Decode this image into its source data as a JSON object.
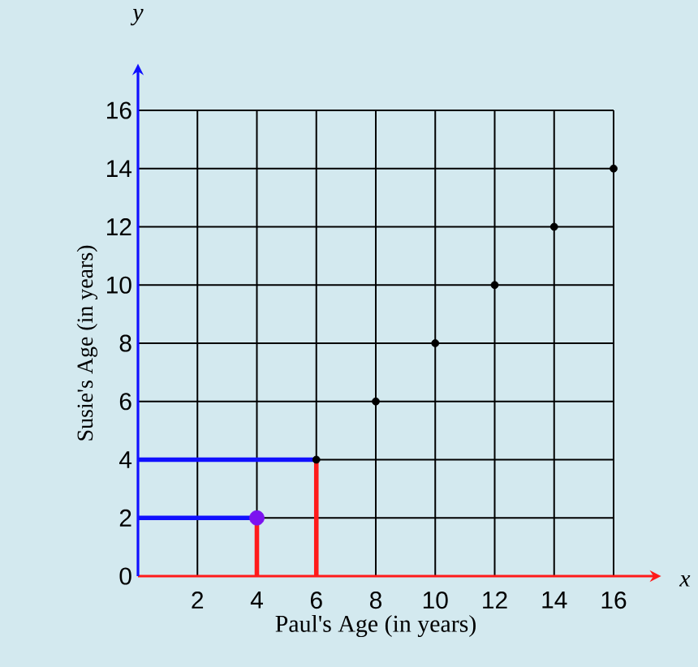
{
  "chart_data": {
    "type": "scatter",
    "xlabel": "Paul's Age (in years)",
    "ylabel": "Susie's Age (in years)",
    "annotations": [
      "x",
      "y"
    ],
    "xlim": [
      0,
      16
    ],
    "ylim": [
      0,
      16
    ],
    "xticks": [
      2,
      4,
      6,
      8,
      10,
      12,
      14,
      16
    ],
    "yticks": [
      0,
      2,
      4,
      6,
      8,
      10,
      12,
      14,
      16
    ],
    "grid": true,
    "series": [
      {
        "marker": "circle",
        "x": [
          4,
          6,
          8,
          10,
          12,
          14,
          16
        ],
        "values": [
          2,
          4,
          6,
          8,
          10,
          12,
          14
        ],
        "sizes": [
          1,
          0.25,
          0.25,
          0.25,
          0.25,
          0.25,
          0.25
        ],
        "colors": [
          "#7b12f0",
          "#000000",
          "#000000",
          "#000000",
          "#000000",
          "#000000",
          "#000000"
        ]
      },
      {
        "type": "line",
        "color": "#ff1a1a",
        "x": [
          4,
          4
        ],
        "values": [
          0,
          2
        ]
      },
      {
        "type": "line",
        "color": "#ff1a1a",
        "x": [
          6,
          6
        ],
        "values": [
          0,
          4
        ]
      },
      {
        "type": "line",
        "color": "#1010ff",
        "x": [
          0,
          4
        ],
        "values": [
          2,
          2
        ]
      },
      {
        "type": "line",
        "color": "#1010ff",
        "x": [
          0,
          6
        ],
        "values": [
          4,
          4
        ]
      }
    ]
  }
}
